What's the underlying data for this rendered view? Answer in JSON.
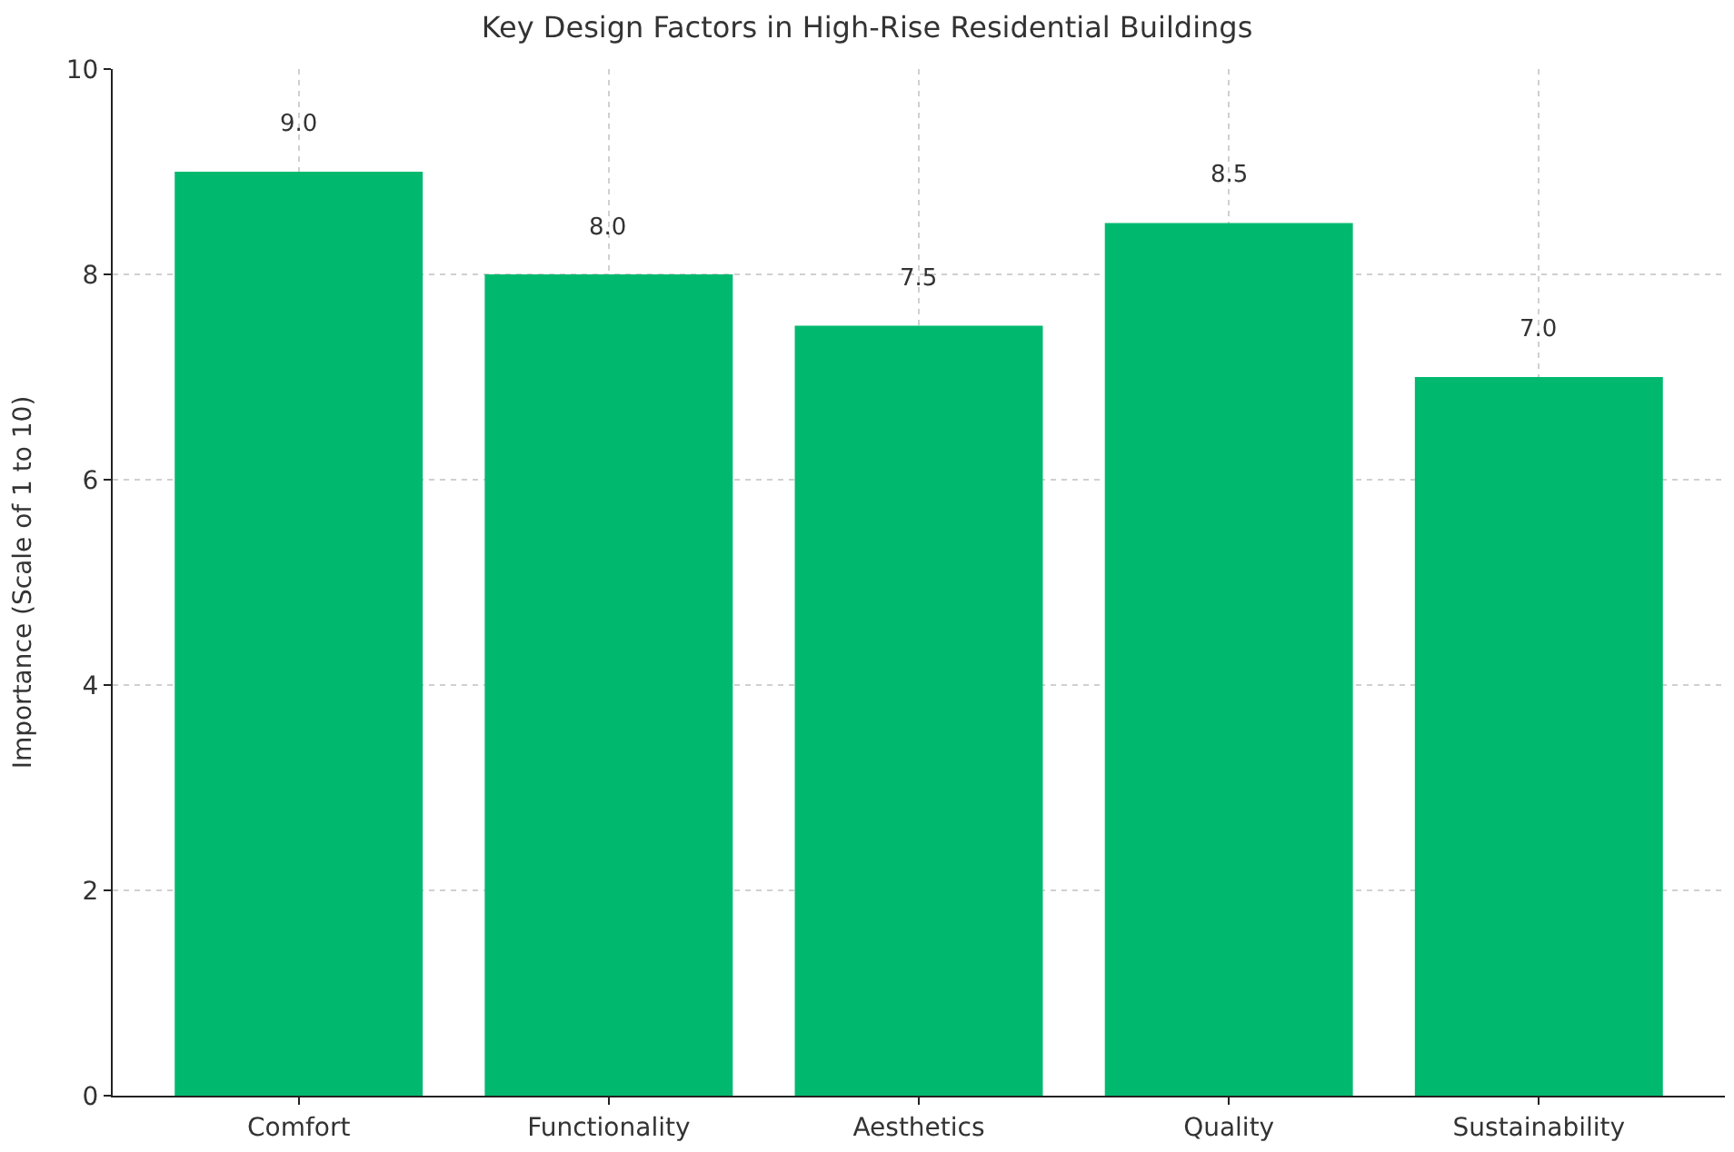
{
  "chart_data": {
    "type": "bar",
    "title": "Key Design Factors in High-Rise Residential Buildings",
    "ylabel": "Importance (Scale of 1 to 10)",
    "categories": [
      "Comfort",
      "Functionality",
      "Aesthetics",
      "Quality",
      "Sustainability"
    ],
    "values": [
      9.0,
      8.0,
      7.5,
      8.5,
      7.0
    ],
    "value_labels": [
      "9.0",
      "8.0",
      "7.5",
      "8.5",
      "7.0"
    ],
    "color": "#00b96f",
    "ylim": [
      0,
      10
    ],
    "yticks": [
      0,
      2,
      4,
      6,
      8,
      10
    ],
    "grid": true
  }
}
